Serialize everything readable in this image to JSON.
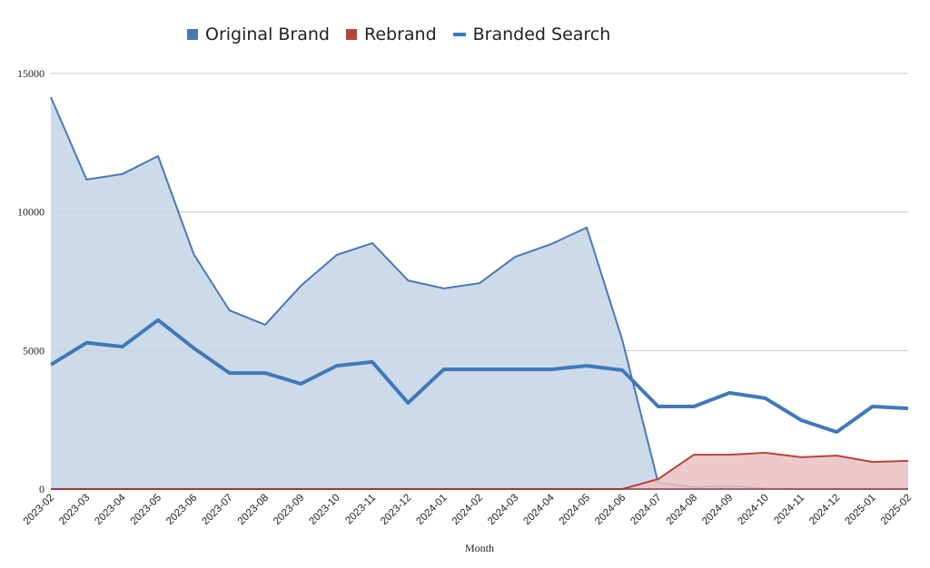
{
  "chart_data": {
    "type": "area",
    "title": "",
    "xlabel": "Month",
    "ylabel": "",
    "ylim": [
      0,
      15000
    ],
    "yticks": [
      0,
      5000,
      10000,
      15000
    ],
    "grid": true,
    "legend_position": "top",
    "categories": [
      "2023-02",
      "2023-03",
      "2023-04",
      "2023-05",
      "2023-06",
      "2023-07",
      "2023-08",
      "2023-09",
      "2023-10",
      "2023-11",
      "2023-12",
      "2024-01",
      "2024-02",
      "2024-03",
      "2024-04",
      "2024-05",
      "2024-06",
      "2024-07",
      "2024-08",
      "2024-09",
      "2024-10",
      "2024-11",
      "2024-12",
      "2025-01",
      "2025-02"
    ],
    "series": [
      {
        "name": "Original Brand",
        "type": "area",
        "color": "#4a78b5",
        "fill": "#c3d3e6",
        "values": [
          14150,
          11170,
          11370,
          12020,
          8480,
          6450,
          5930,
          7340,
          8450,
          8880,
          7530,
          7240,
          7430,
          8380,
          8840,
          9440,
          5370,
          230,
          70,
          110,
          20,
          10,
          10,
          10,
          10
        ]
      },
      {
        "name": "Rebrand",
        "type": "area",
        "color": "#b5443c",
        "fill": "#e9c1c3",
        "values": [
          0,
          0,
          0,
          0,
          0,
          0,
          0,
          0,
          0,
          0,
          0,
          0,
          0,
          0,
          0,
          0,
          0,
          360,
          1240,
          1240,
          1310,
          1150,
          1210,
          980,
          1020
        ]
      },
      {
        "name": "Branded Search",
        "type": "line",
        "color": "#3f79b8",
        "values": [
          4490,
          5280,
          5140,
          6100,
          5090,
          4190,
          4190,
          3800,
          4450,
          4590,
          3110,
          4320,
          4320,
          4320,
          4320,
          4450,
          4290,
          2980,
          2980,
          3470,
          3280,
          2490,
          2060,
          2980,
          2910
        ]
      }
    ]
  },
  "legend": {
    "items": [
      {
        "label": "Original Brand",
        "color": "#4a78b5",
        "marker": "square"
      },
      {
        "label": "Rebrand",
        "color": "#b5443c",
        "marker": "square"
      },
      {
        "label": "Branded Search",
        "color": "#3f79b8",
        "marker": "line"
      }
    ]
  }
}
